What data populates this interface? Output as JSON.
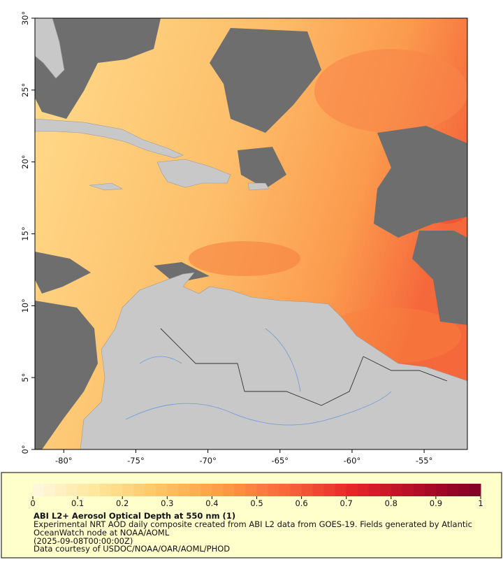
{
  "map": {
    "xlim": [
      -82,
      -52
    ],
    "ylim": [
      0,
      30
    ],
    "xticks": [
      {
        "value": -80,
        "label": "-80°"
      },
      {
        "value": -75,
        "label": "-75°"
      },
      {
        "value": -70,
        "label": "-70°"
      },
      {
        "value": -65,
        "label": "-65°"
      },
      {
        "value": -60,
        "label": "-60°"
      },
      {
        "value": -55,
        "label": "-55°"
      }
    ],
    "yticks": [
      {
        "value": 0,
        "label": "0°"
      },
      {
        "value": 5,
        "label": "5°"
      },
      {
        "value": 10,
        "label": "10°"
      },
      {
        "value": 15,
        "label": "15°"
      },
      {
        "value": 20,
        "label": "20°"
      },
      {
        "value": 25,
        "label": "25°"
      },
      {
        "value": 30,
        "label": "30°"
      }
    ]
  },
  "colorbar": {
    "lim": [
      0,
      1
    ],
    "ticks": [
      0,
      0.1,
      0.2,
      0.3,
      0.4,
      0.5,
      0.6,
      0.7,
      0.8,
      0.9,
      1
    ],
    "colors": [
      "#fff9df",
      "#fee79a",
      "#fdc466",
      "#fd9a45",
      "#f9643a",
      "#e6262a",
      "#b40c26",
      "#800026"
    ]
  },
  "caption": {
    "title": "ABI L2+ Aerosol Optical Depth at 550 nm (1)",
    "lines": [
      "Experimental NRT AOD daily composite created from ABI L2 data from GOES-19. Fields generated by Atlantic",
      "OceanWatch node at NOAA/AOML",
      "(2025-09-08T00:00:00Z)",
      "Data courtesy of USDOC/NOAA/OAR/AOML/PHOD"
    ]
  }
}
